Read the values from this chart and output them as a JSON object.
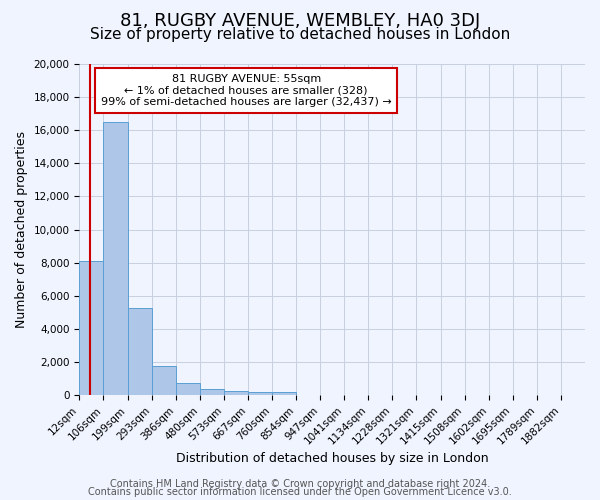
{
  "title": "81, RUGBY AVENUE, WEMBLEY, HA0 3DJ",
  "subtitle": "Size of property relative to detached houses in London",
  "xlabel": "Distribution of detached houses by size in London",
  "ylabel": "Number of detached properties",
  "bin_labels": [
    "12sqm",
    "106sqm",
    "199sqm",
    "293sqm",
    "386sqm",
    "480sqm",
    "573sqm",
    "667sqm",
    "760sqm",
    "854sqm",
    "947sqm",
    "1041sqm",
    "1134sqm",
    "1228sqm",
    "1321sqm",
    "1415sqm",
    "1508sqm",
    "1602sqm",
    "1695sqm",
    "1789sqm",
    "1882sqm"
  ],
  "bar_values": [
    8100,
    16500,
    5250,
    1750,
    750,
    350,
    250,
    200,
    200,
    0,
    0,
    0,
    0,
    0,
    0,
    0,
    0,
    0,
    0,
    0,
    0
  ],
  "bar_color": "#aec6e8",
  "bar_edge_color": "#5a9fd4",
  "annotation_title": "81 RUGBY AVENUE: 55sqm",
  "annotation_line1": "← 1% of detached houses are smaller (328)",
  "annotation_line2": "99% of semi-detached houses are larger (32,437) →",
  "annotation_box_color": "#ffffff",
  "annotation_box_edge": "#cc0000",
  "ylim": [
    0,
    20000
  ],
  "yticks": [
    0,
    2000,
    4000,
    6000,
    8000,
    10000,
    12000,
    14000,
    16000,
    18000,
    20000
  ],
  "footer1": "Contains HM Land Registry data © Crown copyright and database right 2024.",
  "footer2": "Contains public sector information licensed under the Open Government Licence v3.0.",
  "background_color": "#f0f4ff",
  "grid_color": "#c8d0e0",
  "title_fontsize": 13,
  "subtitle_fontsize": 11,
  "axis_label_fontsize": 9,
  "tick_fontsize": 7.5,
  "footer_fontsize": 7
}
